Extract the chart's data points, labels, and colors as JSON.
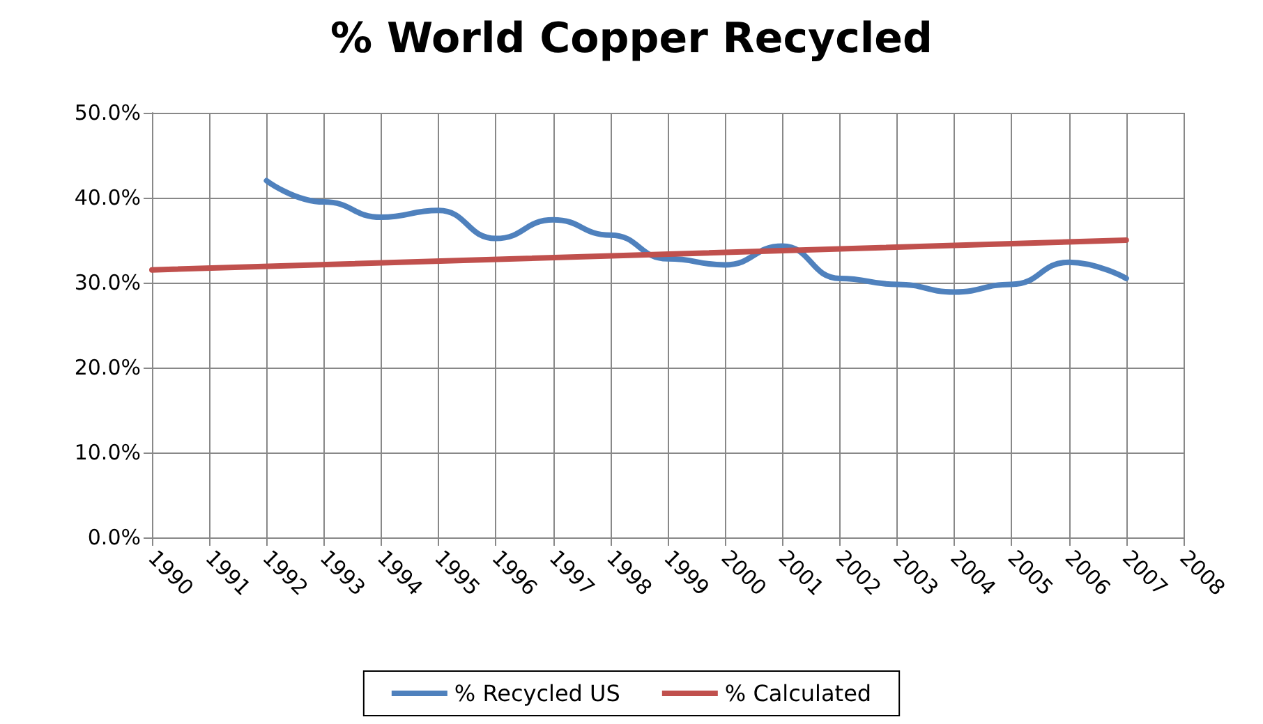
{
  "chart_data": {
    "type": "line",
    "title": "% World Copper Recycled",
    "series": [
      {
        "name": "% Recycled US",
        "color": "#4f81bd",
        "x": [
          1992,
          1993,
          1994,
          1995,
          1996,
          1997,
          1998,
          1999,
          2000,
          2001,
          2002,
          2003,
          2004,
          2005,
          2006,
          2007
        ],
        "values": [
          42.0,
          39.5,
          37.7,
          38.5,
          35.2,
          37.4,
          35.6,
          32.8,
          32.1,
          34.3,
          30.5,
          29.8,
          28.9,
          29.8,
          32.4,
          30.5
        ]
      },
      {
        "name": "% Calculated",
        "color": "#c0504d",
        "x": [
          1990,
          2007
        ],
        "values": [
          31.5,
          35.0
        ]
      }
    ],
    "xlim": [
      1990,
      2008
    ],
    "xticks": [
      1990,
      1991,
      1992,
      1993,
      1994,
      1995,
      1996,
      1997,
      1998,
      1999,
      2000,
      2001,
      2002,
      2003,
      2004,
      2005,
      2006,
      2007,
      2008
    ],
    "ylim": [
      0,
      50
    ],
    "yticks": [
      {
        "value": 0,
        "label": "0.0%"
      },
      {
        "value": 10,
        "label": "10.0%"
      },
      {
        "value": 20,
        "label": "20.0%"
      },
      {
        "value": 30,
        "label": "30.0%"
      },
      {
        "value": 40,
        "label": "40.0%"
      },
      {
        "value": 50,
        "label": "50.0%"
      }
    ],
    "grid": true,
    "legend": "bottom",
    "marker": "none",
    "line_style": "solid"
  }
}
